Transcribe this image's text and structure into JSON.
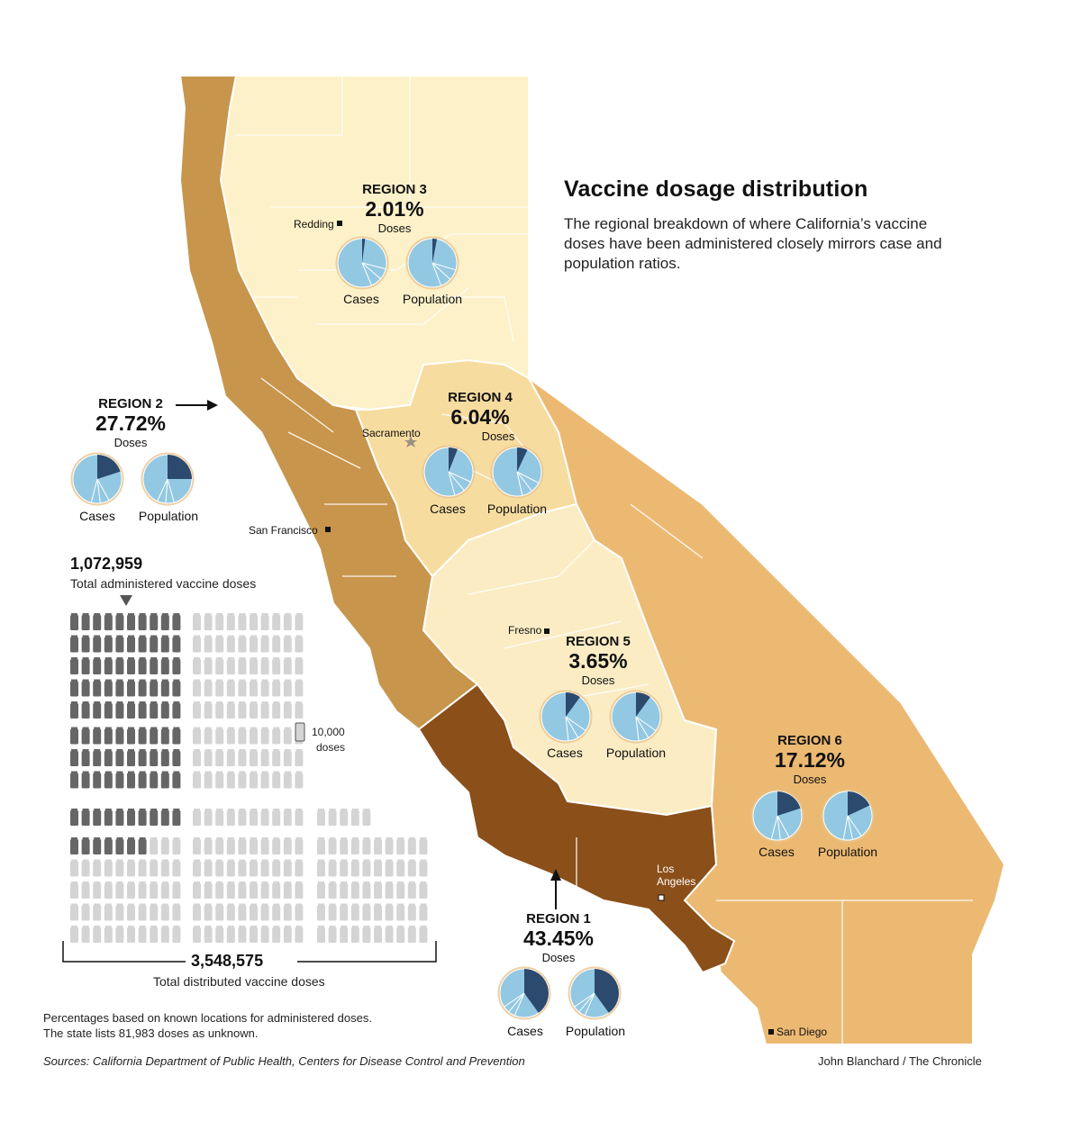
{
  "title": "Vaccine dosage distribution",
  "dek": "The regional breakdown of where California’s vaccine doses have been administered closely mirrors case and population ratios.",
  "labels": {
    "doses": "Doses",
    "cases": "Cases",
    "population": "Population"
  },
  "regions": [
    {
      "name": "REGION 1",
      "pct": "43.45%",
      "cases_share": 0.4,
      "population_share": 0.4,
      "color": "#8b4f1a"
    },
    {
      "name": "REGION 2",
      "pct": "27.72%",
      "cases_share": 0.2,
      "population_share": 0.25,
      "color": "#c8954d"
    },
    {
      "name": "REGION 3",
      "pct": "2.01%",
      "cases_share": 0.02,
      "population_share": 0.03,
      "color": "#fcf1c8"
    },
    {
      "name": "REGION 4",
      "pct": "6.04%",
      "cases_share": 0.06,
      "population_share": 0.07,
      "color": "#f7dca0"
    },
    {
      "name": "REGION 5",
      "pct": "3.65%",
      "cases_share": 0.1,
      "population_share": 0.1,
      "color": "#fbecc4"
    },
    {
      "name": "REGION 6",
      "pct": "17.12%",
      "cases_share": 0.2,
      "population_share": 0.18,
      "color": "#ecb972"
    }
  ],
  "cities": {
    "redding": "Redding",
    "sacramento": "Sacramento",
    "san_francisco": "San Francisco",
    "fresno": "Fresno",
    "los_angeles": "Los Angeles",
    "san_diego": "San Diego"
  },
  "doses": {
    "administered": "1,072,959",
    "administered_label": "Total administered vaccine doses",
    "distributed": "3,548,575",
    "distributed_label": "Total distributed vaccine doses",
    "legend_value": "10,000",
    "legend_unit": "doses",
    "administered_fraction": 0.302
  },
  "notes": {
    "line1": "Percentages based on known locations for administered doses.",
    "line2": "The state lists 81,983 doses as unknown."
  },
  "sources": "Sources: California Department of Public Health, Centers for Disease Control and Prevention",
  "credit": "John Blanchard / The Chronicle",
  "colors": {
    "pie_light": "#93c8e2",
    "pie_dark": "#2c4a6e",
    "vial_dark": "#666666",
    "vial_light": "#d4d4d4"
  }
}
